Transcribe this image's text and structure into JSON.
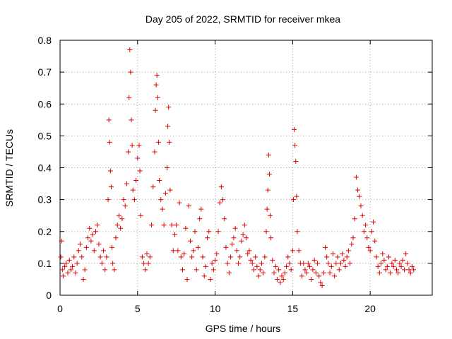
{
  "chart_data": {
    "type": "scatter",
    "title": "Day 205 of 2022, SRMTID for receiver mkea",
    "xlabel": "GPS time / hours",
    "ylabel": "SRMTID / TECUs",
    "xlim": [
      0,
      24
    ],
    "ylim": [
      0,
      0.8
    ],
    "xticks": [
      0,
      5,
      10,
      15,
      20
    ],
    "xtick_labels": [
      "0",
      "5",
      "10",
      "15",
      "20"
    ],
    "yticks": [
      0,
      0.1,
      0.2,
      0.3,
      0.4,
      0.5,
      0.6,
      0.7,
      0.8
    ],
    "ytick_labels": [
      "0",
      "0.1",
      "0.2",
      "0.3",
      "0.4",
      "0.5",
      "0.6",
      "0.7",
      "0.8"
    ],
    "grid": true,
    "marker": "plus",
    "color": "#e00000",
    "series": [
      {
        "name": "SRMTID",
        "points": [
          [
            0.05,
            0.12
          ],
          [
            0.1,
            0.17
          ],
          [
            0.15,
            0.08
          ],
          [
            0.2,
            0.06
          ],
          [
            0.3,
            0.09
          ],
          [
            0.4,
            0.1
          ],
          [
            0.5,
            0.07
          ],
          [
            0.6,
            0.11
          ],
          [
            0.7,
            0.08
          ],
          [
            0.8,
            0.09
          ],
          [
            0.9,
            0.12
          ],
          [
            1.0,
            0.07
          ],
          [
            1.1,
            0.1
          ],
          [
            1.2,
            0.14
          ],
          [
            1.3,
            0.16
          ],
          [
            1.4,
            0.12
          ],
          [
            1.5,
            0.05
          ],
          [
            1.6,
            0.08
          ],
          [
            1.7,
            0.15
          ],
          [
            1.8,
            0.18
          ],
          [
            1.9,
            0.21
          ],
          [
            2.0,
            0.17
          ],
          [
            2.1,
            0.19
          ],
          [
            2.2,
            0.14
          ],
          [
            2.3,
            0.2
          ],
          [
            2.4,
            0.22
          ],
          [
            2.5,
            0.16
          ],
          [
            2.6,
            0.12
          ],
          [
            2.7,
            0.1
          ],
          [
            2.8,
            0.14
          ],
          [
            2.9,
            0.08
          ],
          [
            3.0,
            0.12
          ],
          [
            3.1,
            0.3
          ],
          [
            3.15,
            0.55
          ],
          [
            3.2,
            0.48
          ],
          [
            3.25,
            0.39
          ],
          [
            3.3,
            0.34
          ],
          [
            3.35,
            0.15
          ],
          [
            3.4,
            0.1
          ],
          [
            3.5,
            0.08
          ],
          [
            3.6,
            0.18
          ],
          [
            3.7,
            0.22
          ],
          [
            3.8,
            0.25
          ],
          [
            3.9,
            0.21
          ],
          [
            4.0,
            0.24
          ],
          [
            4.1,
            0.3
          ],
          [
            4.2,
            0.28
          ],
          [
            4.3,
            0.35
          ],
          [
            4.4,
            0.45
          ],
          [
            4.45,
            0.62
          ],
          [
            4.5,
            0.77
          ],
          [
            4.55,
            0.7
          ],
          [
            4.6,
            0.55
          ],
          [
            4.65,
            0.47
          ],
          [
            4.7,
            0.33
          ],
          [
            4.8,
            0.3
          ],
          [
            4.9,
            0.36
          ],
          [
            5.0,
            0.43
          ],
          [
            5.1,
            0.47
          ],
          [
            5.15,
            0.39
          ],
          [
            5.2,
            0.25
          ],
          [
            5.3,
            0.12
          ],
          [
            5.4,
            0.1
          ],
          [
            5.5,
            0.08
          ],
          [
            5.6,
            0.13
          ],
          [
            5.7,
            0.1
          ],
          [
            5.8,
            0.12
          ],
          [
            5.9,
            0.22
          ],
          [
            6.0,
            0.34
          ],
          [
            6.1,
            0.45
          ],
          [
            6.15,
            0.58
          ],
          [
            6.2,
            0.66
          ],
          [
            6.25,
            0.69
          ],
          [
            6.3,
            0.62
          ],
          [
            6.35,
            0.48
          ],
          [
            6.4,
            0.36
          ],
          [
            6.5,
            0.3
          ],
          [
            6.6,
            0.27
          ],
          [
            6.7,
            0.22
          ],
          [
            6.8,
            0.32
          ],
          [
            6.9,
            0.4
          ],
          [
            6.95,
            0.53
          ],
          [
            7.0,
            0.59
          ],
          [
            7.05,
            0.48
          ],
          [
            7.1,
            0.33
          ],
          [
            7.2,
            0.22
          ],
          [
            7.3,
            0.14
          ],
          [
            7.4,
            0.19
          ],
          [
            7.5,
            0.22
          ],
          [
            7.6,
            0.14
          ],
          [
            7.7,
            0.29
          ],
          [
            7.8,
            0.12
          ],
          [
            7.9,
            0.08
          ],
          [
            8.0,
            0.13
          ],
          [
            8.1,
            0.21
          ],
          [
            8.2,
            0.05
          ],
          [
            8.3,
            0.28
          ],
          [
            8.4,
            0.17
          ],
          [
            8.5,
            0.12
          ],
          [
            8.6,
            0.14
          ],
          [
            8.7,
            0.2
          ],
          [
            8.8,
            0.08
          ],
          [
            8.9,
            0.15
          ],
          [
            9.0,
            0.24
          ],
          [
            9.1,
            0.27
          ],
          [
            9.2,
            0.12
          ],
          [
            9.3,
            0.06
          ],
          [
            9.4,
            0.09
          ],
          [
            9.5,
            0.18
          ],
          [
            9.6,
            0.2
          ],
          [
            9.7,
            0.05
          ],
          [
            9.8,
            0.1
          ],
          [
            9.9,
            0.08
          ],
          [
            10.0,
            0.11
          ],
          [
            10.1,
            0.13
          ],
          [
            10.2,
            0.2
          ],
          [
            10.3,
            0.29
          ],
          [
            10.4,
            0.34
          ],
          [
            10.5,
            0.3
          ],
          [
            10.6,
            0.24
          ],
          [
            10.7,
            0.15
          ],
          [
            10.8,
            0.1
          ],
          [
            10.9,
            0.07
          ],
          [
            11.0,
            0.12
          ],
          [
            11.1,
            0.16
          ],
          [
            11.2,
            0.18
          ],
          [
            11.3,
            0.21
          ],
          [
            11.4,
            0.14
          ],
          [
            11.5,
            0.1
          ],
          [
            11.6,
            0.12
          ],
          [
            11.7,
            0.17
          ],
          [
            11.8,
            0.19
          ],
          [
            11.9,
            0.22
          ],
          [
            12.0,
            0.18
          ],
          [
            12.1,
            0.13
          ],
          [
            12.2,
            0.14
          ],
          [
            12.3,
            0.11
          ],
          [
            12.4,
            0.1
          ],
          [
            12.5,
            0.08
          ],
          [
            12.6,
            0.12
          ],
          [
            12.7,
            0.09
          ],
          [
            12.8,
            0.06
          ],
          [
            12.9,
            0.08
          ],
          [
            13.0,
            0.1
          ],
          [
            13.1,
            0.07
          ],
          [
            13.2,
            0.12
          ],
          [
            13.3,
            0.2
          ],
          [
            13.35,
            0.27
          ],
          [
            13.4,
            0.33
          ],
          [
            13.45,
            0.44
          ],
          [
            13.5,
            0.38
          ],
          [
            13.55,
            0.25
          ],
          [
            13.6,
            0.18
          ],
          [
            13.7,
            0.11
          ],
          [
            13.8,
            0.07
          ],
          [
            13.9,
            0.09
          ],
          [
            14.0,
            0.05
          ],
          [
            14.1,
            0.08
          ],
          [
            14.2,
            0.04
          ],
          [
            14.3,
            0.06
          ],
          [
            14.4,
            0.05
          ],
          [
            14.5,
            0.07
          ],
          [
            14.6,
            0.09
          ],
          [
            14.7,
            0.12
          ],
          [
            14.8,
            0.1
          ],
          [
            14.9,
            0.08
          ],
          [
            15.0,
            0.14
          ],
          [
            15.05,
            0.3
          ],
          [
            15.1,
            0.52
          ],
          [
            15.15,
            0.47
          ],
          [
            15.2,
            0.42
          ],
          [
            15.25,
            0.31
          ],
          [
            15.3,
            0.2
          ],
          [
            15.4,
            0.14
          ],
          [
            15.5,
            0.1
          ],
          [
            15.6,
            0.06
          ],
          [
            15.7,
            0.1
          ],
          [
            15.8,
            0.08
          ],
          [
            15.9,
            0.07
          ],
          [
            16.0,
            0.1
          ],
          [
            16.1,
            0.09
          ],
          [
            16.2,
            0.05
          ],
          [
            16.3,
            0.08
          ],
          [
            16.4,
            0.11
          ],
          [
            16.5,
            0.07
          ],
          [
            16.6,
            0.1
          ],
          [
            16.7,
            0.06
          ],
          [
            16.8,
            0.04
          ],
          [
            16.9,
            0.03
          ],
          [
            17.0,
            0.07
          ],
          [
            17.1,
            0.15
          ],
          [
            17.2,
            0.12
          ],
          [
            17.3,
            0.1
          ],
          [
            17.4,
            0.07
          ],
          [
            17.5,
            0.09
          ],
          [
            17.6,
            0.13
          ],
          [
            17.7,
            0.06
          ],
          [
            17.8,
            0.1
          ],
          [
            17.9,
            0.12
          ],
          [
            18.0,
            0.08
          ],
          [
            18.1,
            0.1
          ],
          [
            18.2,
            0.13
          ],
          [
            18.3,
            0.11
          ],
          [
            18.4,
            0.09
          ],
          [
            18.5,
            0.12
          ],
          [
            18.6,
            0.14
          ],
          [
            18.7,
            0.1
          ],
          [
            18.8,
            0.16
          ],
          [
            18.9,
            0.18
          ],
          [
            19.0,
            0.24
          ],
          [
            19.1,
            0.37
          ],
          [
            19.2,
            0.33
          ],
          [
            19.3,
            0.31
          ],
          [
            19.4,
            0.28
          ],
          [
            19.5,
            0.25
          ],
          [
            19.6,
            0.2
          ],
          [
            19.7,
            0.22
          ],
          [
            19.8,
            0.18
          ],
          [
            19.9,
            0.15
          ],
          [
            20.0,
            0.14
          ],
          [
            20.1,
            0.2
          ],
          [
            20.2,
            0.23
          ],
          [
            20.3,
            0.17
          ],
          [
            20.4,
            0.12
          ],
          [
            20.5,
            0.09
          ],
          [
            20.6,
            0.07
          ],
          [
            20.7,
            0.1
          ],
          [
            20.8,
            0.13
          ],
          [
            20.9,
            0.11
          ],
          [
            21.0,
            0.08
          ],
          [
            21.1,
            0.09
          ],
          [
            21.2,
            0.12
          ],
          [
            21.3,
            0.07
          ],
          [
            21.4,
            0.1
          ],
          [
            21.5,
            0.09
          ],
          [
            21.6,
            0.11
          ],
          [
            21.7,
            0.08
          ],
          [
            21.8,
            0.07
          ],
          [
            21.9,
            0.1
          ],
          [
            22.0,
            0.09
          ],
          [
            22.1,
            0.11
          ],
          [
            22.2,
            0.08
          ],
          [
            22.3,
            0.13
          ],
          [
            22.4,
            0.1
          ],
          [
            22.5,
            0.08
          ],
          [
            22.6,
            0.07
          ],
          [
            22.7,
            0.09
          ],
          [
            22.8,
            0.08
          ]
        ]
      }
    ]
  }
}
